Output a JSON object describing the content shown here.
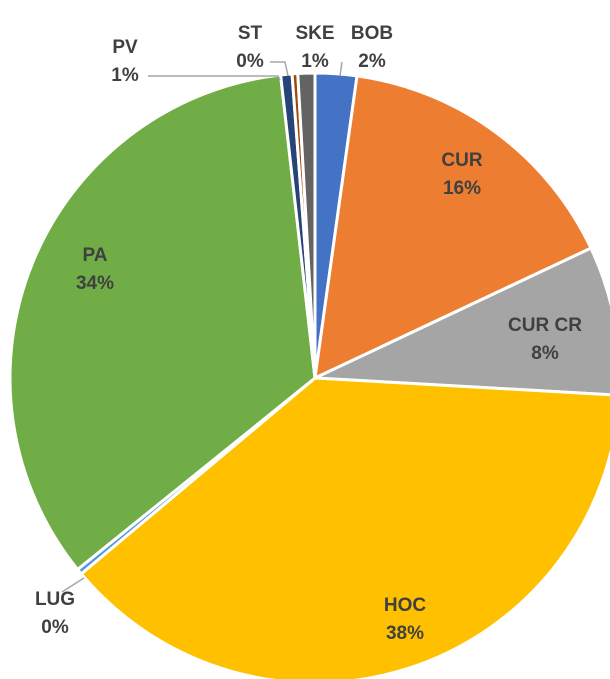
{
  "chart_data": {
    "type": "pie",
    "categories": [
      "BOB",
      "CUR",
      "CUR CR",
      "HOC",
      "LUG",
      "PA",
      "PV",
      "ST",
      "SKE"
    ],
    "values": [
      2.2,
      15.8,
      7.9,
      38.0,
      0.3,
      34.0,
      0.6,
      0.3,
      0.9
    ],
    "value_labels": [
      "2%",
      "16%",
      "8%",
      "38%",
      "0%",
      "34%",
      "1%",
      "0%",
      "1%"
    ],
    "colors": [
      "#4472c4",
      "#ed7d31",
      "#a5a5a5",
      "#ffc000",
      "#5b9bd5",
      "#70ad47",
      "#264478",
      "#9e480e",
      "#636363"
    ]
  }
}
